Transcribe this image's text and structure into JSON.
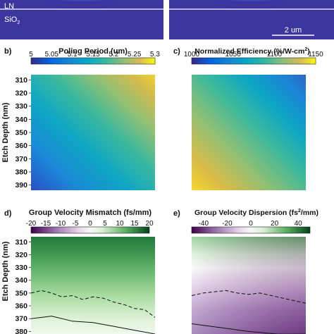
{
  "top_row": {
    "left": {
      "layer_top": "LN",
      "layer_bottom": "SiO",
      "layer_bottom_sub": "2"
    },
    "right": {
      "scale_bar_label": "2 um"
    }
  },
  "chart_data": [
    {
      "id": "b",
      "panel_label": "b)",
      "type": "heatmap",
      "title": "Poling Period (um)",
      "ylabel": "Etch Depth (nm)",
      "yticks": [
        310,
        320,
        330,
        340,
        350,
        360,
        370,
        380,
        390
      ],
      "ylim": [
        306,
        394
      ],
      "colorbar": {
        "colormap": "parula",
        "range": [
          5,
          5.3
        ],
        "ticks": [
          "5",
          "5.05",
          "5.1",
          "5.15",
          "5.2",
          "5.25",
          "5.3"
        ]
      },
      "surface": {
        "low_corner": "bottom-left",
        "high_corner": "top-right"
      }
    },
    {
      "id": "c",
      "panel_label": "c)",
      "type": "heatmap",
      "title": "Normalized Efficiency (%/W-cm",
      "title_sup": "2",
      "title_end": ")",
      "colorbar": {
        "colormap": "parula",
        "range": [
          1000,
          1150
        ],
        "ticks": [
          "1000",
          "1050",
          "1100",
          "1150"
        ]
      },
      "surface": {
        "low_corner": "top-right",
        "high_corner": "bottom-left"
      }
    },
    {
      "id": "d",
      "panel_label": "d)",
      "type": "heatmap",
      "title": "Group Velocity Mismatch (fs/mm)",
      "ylabel": "Etch Depth (nm)",
      "yticks": [
        310,
        320,
        330,
        340,
        350,
        360,
        370,
        380
      ],
      "ylim": [
        306,
        382
      ],
      "colorbar": {
        "colormap": "PRGn",
        "range": [
          -20,
          20
        ],
        "ticks": [
          "-20",
          "-15",
          "-10",
          "-5",
          "0",
          "5",
          "10",
          "15",
          "20"
        ]
      },
      "contours": [
        {
          "style": "dashed",
          "y": [
            350,
            348,
            350,
            353,
            352,
            355,
            353,
            354,
            357,
            359,
            362,
            363,
            369
          ]
        },
        {
          "style": "solid",
          "y": [
            370,
            368,
            372,
            373,
            376,
            379,
            382
          ]
        }
      ]
    },
    {
      "id": "e",
      "panel_label": "e)",
      "type": "heatmap",
      "title": "Group Velocity Dispersion (fs",
      "title_sup": "2",
      "title_end": "/mm)",
      "colorbar": {
        "colormap": "PRGn",
        "range": [
          -50,
          50
        ],
        "ticks": [
          "-40",
          "-20",
          "0",
          "20",
          "40"
        ]
      },
      "contours": [
        {
          "style": "dashed",
          "y": [
            352,
            350,
            349,
            348,
            350,
            351,
            350,
            352,
            354,
            356,
            358
          ]
        },
        {
          "style": "solid",
          "y": [
            374,
            377,
            380,
            382,
            383
          ]
        }
      ]
    }
  ]
}
